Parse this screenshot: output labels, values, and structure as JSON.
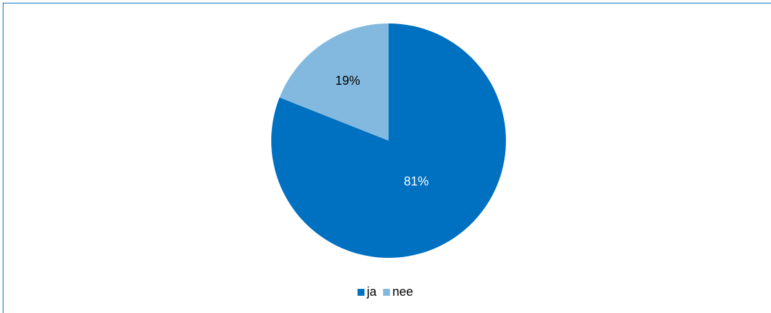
{
  "chart_data": {
    "type": "pie",
    "categories": [
      "ja",
      "nee"
    ],
    "values": [
      81,
      19
    ],
    "labels": [
      "81%",
      "19%"
    ],
    "colors": [
      "#0070c0",
      "#83b9de"
    ],
    "label_colors": [
      "#ffffff",
      "#000000"
    ],
    "legend_position": "bottom",
    "start_angle_deg": 0,
    "direction": "clockwise"
  }
}
